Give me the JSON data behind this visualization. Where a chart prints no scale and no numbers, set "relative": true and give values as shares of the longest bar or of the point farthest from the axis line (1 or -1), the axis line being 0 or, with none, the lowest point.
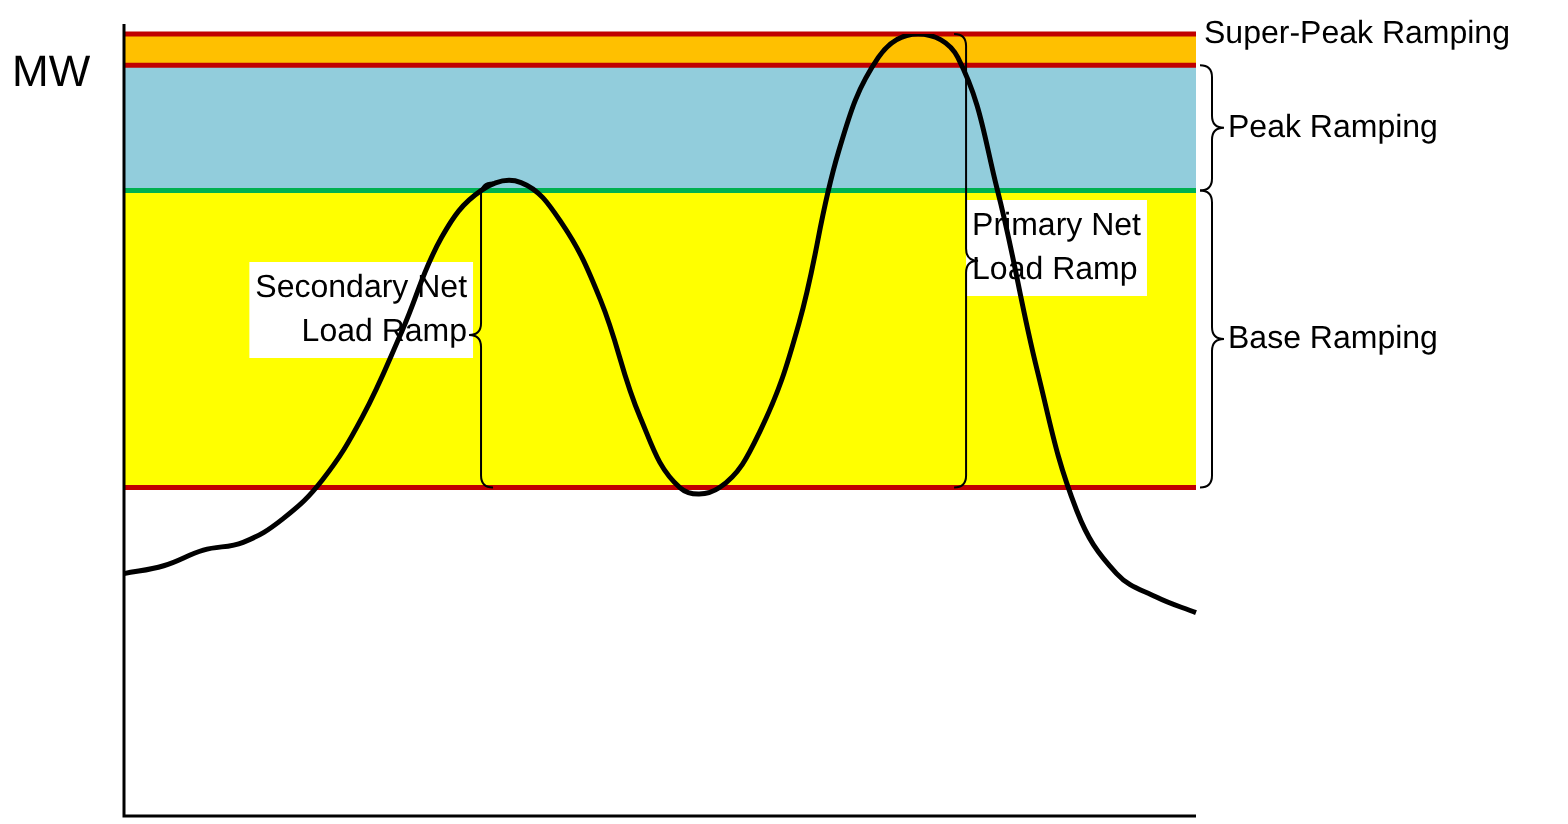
{
  "chart_data": {
    "type": "line",
    "relative": true,
    "ylabel": "MW",
    "categories": [
      null,
      null,
      null,
      null,
      null,
      null,
      null,
      null,
      null,
      null,
      null,
      null,
      null,
      null,
      null,
      null,
      null,
      null,
      null,
      null,
      null,
      null,
      null,
      null,
      null,
      null,
      null,
      null
    ],
    "values": [
      0.31,
      0.32,
      0.34,
      0.35,
      0.38,
      0.43,
      0.51,
      0.62,
      0.74,
      0.8,
      0.81,
      0.76,
      0.66,
      0.51,
      0.42,
      0.42,
      0.49,
      0.63,
      0.85,
      0.97,
      1,
      0.97,
      0.8,
      0.57,
      0.39,
      0.31,
      0.28,
      0.26
    ],
    "color": "#000000",
    "marker": "none",
    "line_style": "solid",
    "legend": false,
    "bands": [
      {
        "axis": "y",
        "from": 0.42,
        "to": 0.8,
        "label": "Base Ramping",
        "color": "#ffff00"
      },
      {
        "axis": "y",
        "from": 0.8,
        "to": 0.96,
        "label": "Peak Ramping",
        "color": "#92cddc"
      },
      {
        "axis": "y",
        "from": 0.96,
        "to": 1,
        "label": "Super-Peak Ramping",
        "color": "#ffc000"
      }
    ],
    "ref_lines": [
      {
        "axis": "y",
        "value": 0.42,
        "color": "#c00000"
      },
      {
        "axis": "y",
        "value": 0.8,
        "color": "#00b050"
      },
      {
        "axis": "y",
        "value": 0.96,
        "color": "#c00000"
      },
      {
        "axis": "y",
        "value": 1,
        "color": "#c00000"
      }
    ],
    "annotations": [
      "Secondary Net Load Ramp",
      "Primary Net Load Ramp"
    ]
  }
}
